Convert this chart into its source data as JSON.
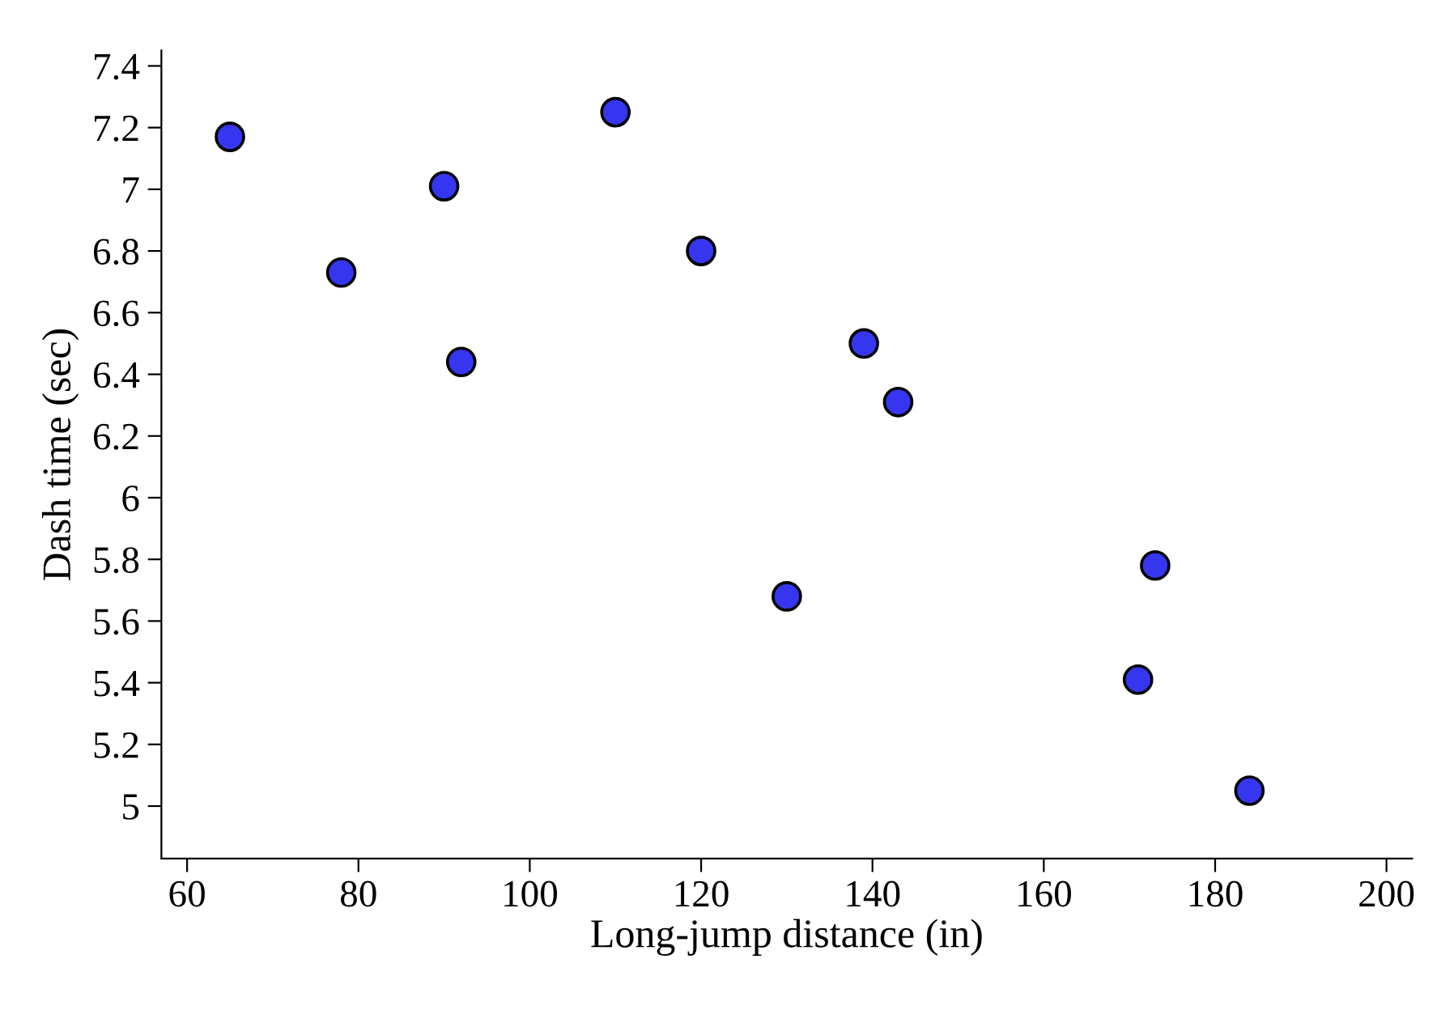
{
  "chart_data": {
    "type": "scatter",
    "xlabel": "Long-jump distance (in)",
    "ylabel": "Dash time (sec)",
    "x": [
      65,
      78,
      90,
      92,
      110,
      120,
      130,
      139,
      143,
      171,
      173,
      184
    ],
    "series": [
      {
        "color": "#3636f0",
        "values": [
          7.17,
          6.73,
          7.01,
          6.44,
          7.25,
          6.8,
          5.68,
          6.5,
          6.31,
          5.41,
          5.78,
          5.05
        ]
      }
    ],
    "xlim": [
      57,
      203
    ],
    "ylim": [
      4.83,
      7.45
    ],
    "xticks": [
      60,
      80,
      100,
      120,
      140,
      160,
      180,
      200
    ],
    "yticks": [
      5,
      5.2,
      5.4,
      5.6,
      5.8,
      6,
      6.2,
      6.4,
      6.6,
      6.8,
      7,
      7.2,
      7.4
    ],
    "marker": "circle",
    "grid": false,
    "legend": false
  }
}
